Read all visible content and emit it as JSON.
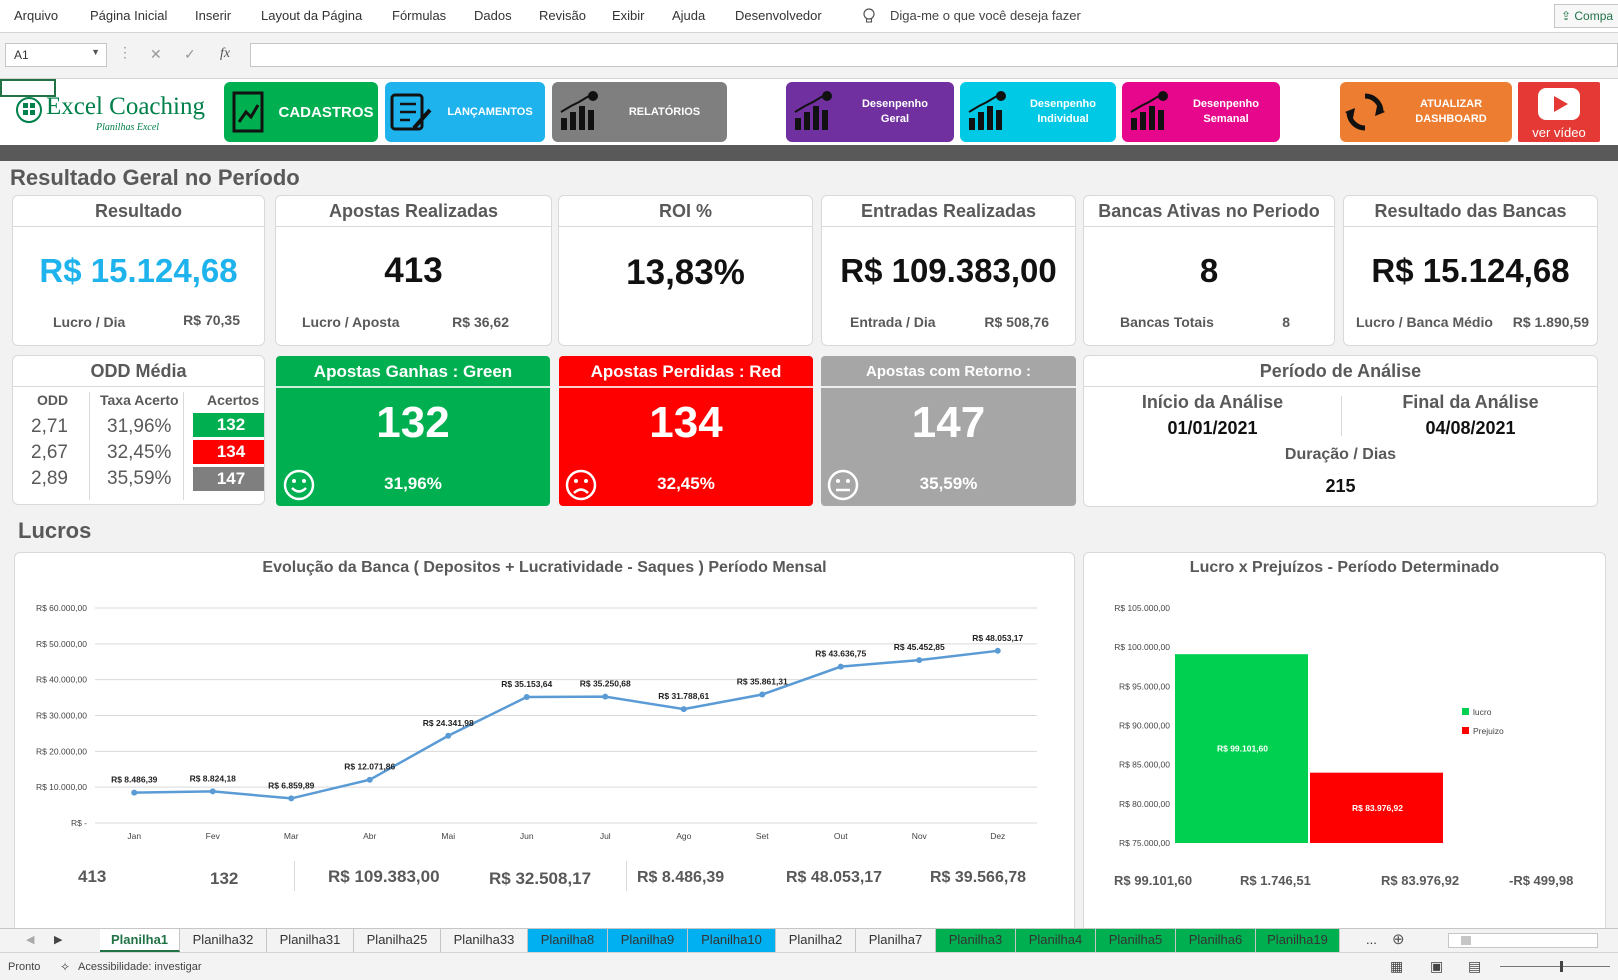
{
  "ribbon": {
    "tabs": [
      "Arquivo",
      "Página Inicial",
      "Inserir",
      "Layout da Página",
      "Fórmulas",
      "Dados",
      "Revisão",
      "Exibir",
      "Ajuda",
      "Desenvolvedor"
    ],
    "tell_me": "Diga-me o que você deseja fazer",
    "share": "Compa"
  },
  "formula": {
    "namebox": "A1",
    "value": ""
  },
  "logo": {
    "title": "Excel Coaching",
    "subtitle": "Planilhas Excel"
  },
  "menu": {
    "cadastros": "CADASTROS",
    "lancamentos": "LANÇAMENTOS",
    "relatorios": "RELATÓRIOS",
    "desemp_geral_1": "Desenpenho",
    "desemp_geral_2": "Geral",
    "desemp_ind_1": "Desenpenho",
    "desemp_ind_2": "Individual",
    "desemp_sem_1": "Desenpenho",
    "desemp_sem_2": "Semanal",
    "atualizar_1": "ATUALIZAR",
    "atualizar_2": "DASHBOARD",
    "video": "ver vídeo"
  },
  "colors": {
    "green": "#00b050",
    "blue": "#1fb3ed",
    "gray": "#7f7f7f",
    "purple": "#7030a0",
    "cyan": "#00c9e6",
    "pink": "#e6078c",
    "orange": "#ed7d31",
    "red": "#ff0000",
    "line": "#5b9bd5",
    "bar_green": "#00d050"
  },
  "section1": "Resultado Geral no Período",
  "kpi": {
    "resultado": {
      "title": "Resultado",
      "value": "R$ 15.124,68",
      "sub_label": "Lucro / Dia",
      "sub_value": "R$ 70,35"
    },
    "apostas": {
      "title": "Apostas Realizadas",
      "value": "413",
      "sub_label": "Lucro / Aposta",
      "sub_value": "R$ 36,62"
    },
    "roi": {
      "title": "ROI %",
      "value": "13,83%"
    },
    "entradas": {
      "title": "Entradas Realizadas",
      "value": "R$ 109.383,00",
      "sub_label": "Entrada / Dia",
      "sub_value": "R$ 508,76"
    },
    "bancas": {
      "title": "Bancas Ativas no Periodo",
      "value": "8",
      "sub_label": "Bancas Totais",
      "sub_value": "8"
    },
    "resultado_bancas": {
      "title": "Resultado das Bancas",
      "value": "R$ 15.124,68",
      "sub_label": "Lucro / Banca Médio",
      "sub_value": "R$ 1.890,59"
    }
  },
  "odd": {
    "title": "ODD Média",
    "headers": [
      "ODD",
      "Taxa Acerto",
      "Acertos"
    ],
    "rows": [
      {
        "odd": "2,71",
        "taxa": "31,96%",
        "acertos": "132"
      },
      {
        "odd": "2,67",
        "taxa": "32,45%",
        "acertos": "134"
      },
      {
        "odd": "2,89",
        "taxa": "35,59%",
        "acertos": "147"
      }
    ]
  },
  "green": {
    "title": "Apostas Ganhas : Green",
    "value": "132",
    "pct": "31,96%"
  },
  "red": {
    "title": "Apostas Perdidas : Red",
    "value": "134",
    "pct": "32,45%"
  },
  "retorno": {
    "title": "Apostas com Retorno :",
    "value": "147",
    "pct": "35,59%"
  },
  "periodo": {
    "title": "Período de Análise",
    "inicio_label": "Início da Análise",
    "inicio": "01/01/2021",
    "final_label": "Final da Análise",
    "final": "04/08/2021",
    "duracao_label": "Duração / Dias",
    "duracao": "215"
  },
  "section2": "Lucros",
  "chart_data": [
    {
      "type": "line",
      "title": "Evolução da Banca ( Depositos + Lucratividade  - Saques ) Período Mensal",
      "categories": [
        "Jan",
        "Fev",
        "Mar",
        "Abr",
        "Mai",
        "Jun",
        "Jul",
        "Ago",
        "Set",
        "Out",
        "Nov",
        "Dez"
      ],
      "values": [
        8486.39,
        8824.18,
        6859.89,
        12071.86,
        24341.98,
        35153.64,
        35250.68,
        31788.61,
        35861.31,
        43636.75,
        45452.85,
        48053.17
      ],
      "data_labels": [
        "R$ 8.486,39",
        "R$ 8.824,18",
        "R$ 6.859,89",
        "R$ 12.071,86",
        "R$ 24.341,98",
        "R$ 35.153,64",
        "R$ 35.250,68",
        "R$ 31.788,61",
        "R$ 35.861,31",
        "R$ 43.636,75",
        "R$ 45.452,85",
        "R$ 48.053,17"
      ],
      "yticks": [
        "R$ -",
        "R$ 10.000,00",
        "R$ 20.000,00",
        "R$ 30.000,00",
        "R$ 40.000,00",
        "R$ 50.000,00",
        "R$ 60.000,00"
      ],
      "ylim": [
        0,
        60000
      ],
      "grid": true
    },
    {
      "type": "bar",
      "title": "Lucro x Prejuízos - Período Determinado",
      "series": [
        {
          "name": "lucro",
          "value": 99101.6,
          "label": "R$ 99.101,60",
          "color": "#00d050"
        },
        {
          "name": "Prejuizo",
          "value": 83976.92,
          "label": "R$ 83.976,92",
          "color": "#ff0000"
        }
      ],
      "yticks": [
        "R$ 75.000,00",
        "R$ 80.000,00",
        "R$ 85.000,00",
        "R$ 90.000,00",
        "R$ 95.000,00",
        "R$ 100.000,00",
        "R$ 105.000,00"
      ],
      "ylim": [
        75000,
        105000
      ],
      "legend": "right"
    }
  ],
  "bottom_left": [
    "413",
    "132",
    "R$ 109.383,00",
    "R$ 32.508,17",
    "R$ 8.486,39",
    "R$ 48.053,17",
    "R$ 39.566,78"
  ],
  "bottom_right": [
    "R$ 99.101,60",
    "R$ 1.746,51",
    "R$ 83.976,92",
    "-R$ 499,98"
  ],
  "sheets": [
    {
      "name": "Planilha1",
      "color": "#ffffff",
      "active": true
    },
    {
      "name": "Planilha32",
      "color": "#f3f3f3"
    },
    {
      "name": "Planilha31",
      "color": "#f3f3f3"
    },
    {
      "name": "Planilha25",
      "color": "#f3f3f3"
    },
    {
      "name": "Planilha33",
      "color": "#f3f3f3"
    },
    {
      "name": "Planilha8",
      "color": "#00b0f0"
    },
    {
      "name": "Planilha9",
      "color": "#00b0f0"
    },
    {
      "name": "Planilha10",
      "color": "#00b0f0"
    },
    {
      "name": "Planilha2",
      "color": "#f3f3f3"
    },
    {
      "name": "Planilha7",
      "color": "#f3f3f3"
    },
    {
      "name": "Planilha3",
      "color": "#00b050"
    },
    {
      "name": "Planilha4",
      "color": "#00b050"
    },
    {
      "name": "Planilha5",
      "color": "#00b050"
    },
    {
      "name": "Planilha6",
      "color": "#00b050"
    },
    {
      "name": "Planilha19",
      "color": "#00b050"
    }
  ],
  "more_sheets": "...",
  "status": {
    "ready": "Pronto",
    "accessibility": "Acessibilidade: investigar"
  }
}
